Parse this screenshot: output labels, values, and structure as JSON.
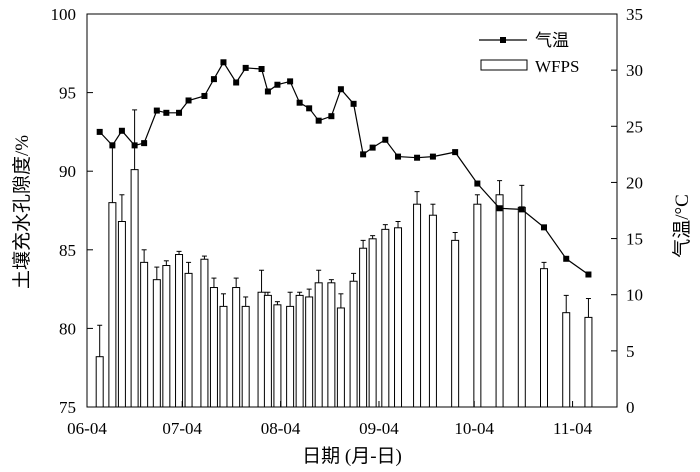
{
  "chart_data": {
    "type": "bar",
    "xlabel": "日期 (月-日)",
    "ylabel": "土壤充水孔隙度/%",
    "y2label": "气温/°C",
    "xlim": [
      "06-04",
      "11-18"
    ],
    "ylim": [
      75,
      100
    ],
    "y2lim": [
      0,
      35
    ],
    "xticks": [
      "06-04",
      "07-04",
      "08-04",
      "09-04",
      "10-04",
      "11-04"
    ],
    "yticks": [
      75,
      80,
      85,
      90,
      95,
      100
    ],
    "y2ticks": [
      0,
      5,
      10,
      15,
      20,
      25,
      30,
      35
    ],
    "grid": false,
    "legend": "top-right",
    "x": [
      "06-08",
      "06-12",
      "06-15",
      "06-19",
      "06-22",
      "06-26",
      "06-29",
      "07-03",
      "07-06",
      "07-11",
      "07-14",
      "07-17",
      "07-21",
      "07-24",
      "07-29",
      "07-31",
      "08-03",
      "08-07",
      "08-10",
      "08-13",
      "08-16",
      "08-20",
      "08-23",
      "08-27",
      "08-30",
      "09-02",
      "09-06",
      "09-10",
      "09-16",
      "09-21",
      "09-28",
      "10-05",
      "10-12",
      "10-19",
      "10-26",
      "11-02",
      "11-09"
    ],
    "series": [
      {
        "name": "气温",
        "type": "line",
        "y_axis": "right",
        "marker": "square",
        "color": "#000000",
        "values": [
          24.5,
          23.3,
          24.6,
          23.3,
          23.5,
          26.4,
          26.2,
          26.2,
          27.3,
          27.7,
          29.2,
          30.7,
          28.9,
          30.2,
          30.1,
          28.1,
          28.7,
          29.0,
          27.1,
          26.6,
          25.5,
          25.9,
          28.3,
          27.0,
          22.5,
          23.1,
          23.8,
          22.3,
          22.2,
          22.3,
          22.7,
          19.9,
          17.7,
          17.6,
          16.0,
          13.2,
          11.8
        ]
      },
      {
        "name": "WFPS",
        "type": "bar",
        "y_axis": "left",
        "color": "#000000",
        "fill": "#ffffff",
        "values": [
          78.2,
          88.0,
          86.8,
          90.1,
          84.2,
          83.1,
          84.0,
          84.7,
          83.5,
          84.4,
          82.6,
          81.4,
          82.6,
          81.4,
          82.3,
          82.1,
          81.5,
          81.4,
          82.1,
          82.0,
          82.9,
          82.9,
          81.3,
          83.0,
          85.1,
          85.7,
          86.3,
          86.4,
          87.9,
          87.2,
          85.6,
          87.9,
          88.5,
          87.7,
          83.8,
          81.0,
          80.7
        ],
        "error": [
          2.0,
          3.8,
          1.7,
          3.8,
          0.8,
          0.8,
          0.3,
          0.2,
          0.7,
          0.2,
          0.6,
          0.8,
          0.6,
          0.6,
          1.4,
          0.2,
          0.2,
          0.9,
          0.2,
          0.5,
          0.8,
          0.2,
          0.9,
          0.5,
          0.5,
          0.2,
          0.3,
          0.4,
          0.8,
          0.7,
          0.5,
          0.6,
          0.9,
          1.4,
          0.4,
          1.1,
          1.2
        ]
      }
    ]
  }
}
